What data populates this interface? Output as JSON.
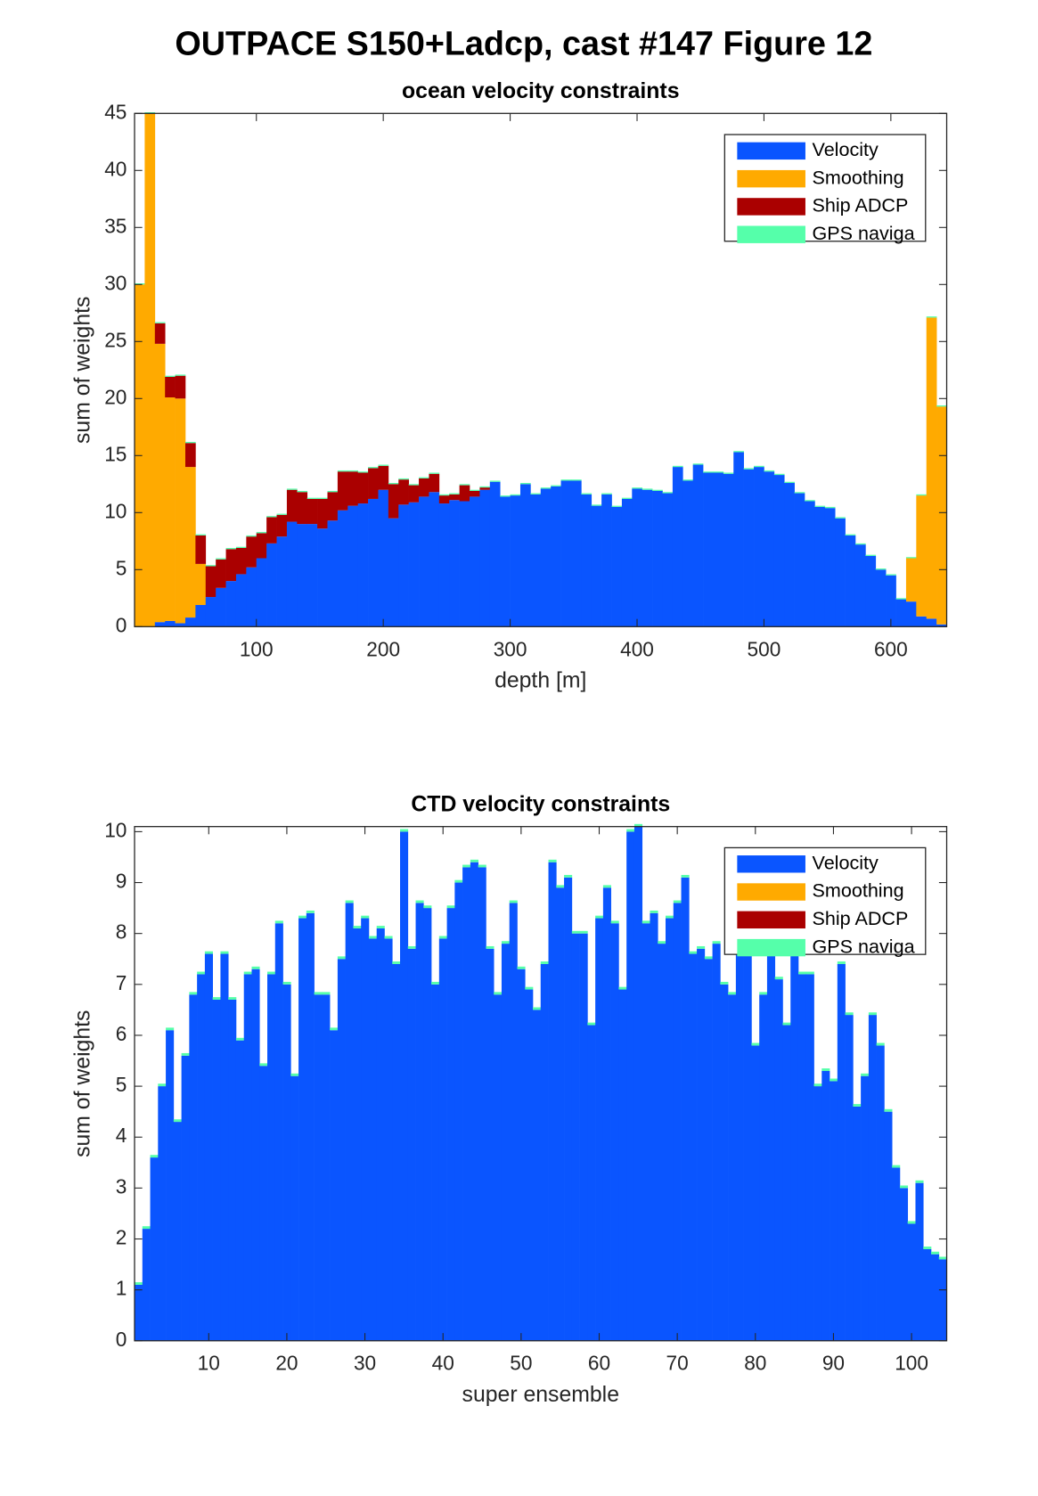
{
  "title": "OUTPACE S150+Ladcp, cast #147  Figure 12",
  "chart_data": [
    {
      "type": "bar",
      "stacked": true,
      "title": "ocean velocity constraints",
      "xlabel": "depth [m]",
      "ylabel": "sum of weights",
      "x": [
        8,
        16,
        24,
        32,
        40,
        48,
        56,
        64,
        72,
        80,
        88,
        96,
        104,
        112,
        120,
        128,
        136,
        144,
        152,
        160,
        168,
        176,
        184,
        192,
        200,
        208,
        216,
        224,
        232,
        240,
        248,
        256,
        264,
        272,
        280,
        288,
        296,
        304,
        312,
        320,
        328,
        336,
        344,
        352,
        360,
        368,
        376,
        384,
        392,
        400,
        408,
        416,
        424,
        432,
        440,
        448,
        456,
        464,
        472,
        480,
        488,
        496,
        504,
        512,
        520,
        528,
        536,
        544,
        552,
        560,
        568,
        576,
        584,
        592,
        600,
        608,
        616,
        624,
        632,
        640
      ],
      "series": [
        {
          "name": "Velocity",
          "color": "#0a55ff",
          "values": [
            0,
            0,
            0.4,
            0.5,
            0.3,
            0.8,
            1.9,
            2.6,
            3.4,
            4.0,
            4.6,
            5.2,
            6.0,
            7.3,
            7.9,
            9.2,
            9.0,
            9.0,
            8.6,
            9.3,
            10.2,
            10.6,
            10.8,
            11.2,
            12.0,
            9.5,
            10.7,
            10.9,
            11.4,
            11.8,
            10.8,
            11.1,
            11.0,
            11.4,
            12.0,
            12.7,
            11.4,
            11.5,
            12.5,
            11.6,
            12.1,
            12.3,
            12.8,
            12.8,
            11.6,
            10.6,
            11.6,
            10.5,
            11.2,
            12.1,
            12.0,
            11.9,
            11.7,
            14.0,
            12.8,
            14.2,
            13.5,
            13.5,
            13.4,
            15.3,
            13.8,
            14.0,
            13.6,
            13.3,
            12.6,
            11.7,
            11.0,
            10.5,
            10.4,
            9.5,
            8.0,
            7.2,
            6.2,
            5.0,
            4.5,
            2.4,
            2.2,
            0.9,
            0.7,
            0.2
          ]
        },
        {
          "name": "Smoothing",
          "color": "#ffaa00",
          "values": [
            30,
            45,
            24.4,
            19.6,
            19.7,
            13.2,
            3.6,
            0,
            0,
            0,
            0,
            0,
            0,
            0,
            0,
            0,
            0,
            0,
            0,
            0,
            0,
            0,
            0,
            0,
            0,
            0,
            0,
            0,
            0,
            0,
            0,
            0,
            0,
            0,
            0,
            0,
            0,
            0,
            0,
            0,
            0,
            0,
            0,
            0,
            0,
            0,
            0,
            0,
            0,
            0,
            0,
            0,
            0,
            0,
            0,
            0,
            0,
            0,
            0,
            0,
            0,
            0,
            0,
            0,
            0,
            0,
            0,
            0,
            0,
            0,
            0,
            0,
            0,
            0,
            0,
            0,
            3.8,
            10.6,
            26.4,
            19.1
          ]
        },
        {
          "name": "Ship ADCP",
          "color": "#aa0000",
          "values": [
            0,
            0,
            1.8,
            1.8,
            2.0,
            2.1,
            2.5,
            2.7,
            2.5,
            2.8,
            2.3,
            2.7,
            2.2,
            2.3,
            1.9,
            2.8,
            2.8,
            2.2,
            2.6,
            2.5,
            3.4,
            3.0,
            2.7,
            2.7,
            2.1,
            3.0,
            2.2,
            1.5,
            1.6,
            1.6,
            0.7,
            0.5,
            1.4,
            0.5,
            0.2,
            0,
            0,
            0,
            0,
            0,
            0,
            0,
            0,
            0,
            0,
            0,
            0,
            0,
            0,
            0,
            0,
            0,
            0,
            0,
            0,
            0,
            0,
            0,
            0,
            0,
            0,
            0,
            0,
            0,
            0,
            0,
            0,
            0,
            0,
            0,
            0,
            0,
            0,
            0,
            0,
            0,
            0,
            0,
            0,
            0
          ]
        },
        {
          "name": "GPS naviga",
          "color": "#55ffaa",
          "values": [
            0.1,
            0.1,
            0.1,
            0.1,
            0.1,
            0.1,
            0.1,
            0.1,
            0.1,
            0.1,
            0.1,
            0.1,
            0.1,
            0.1,
            0.1,
            0.1,
            0.1,
            0.1,
            0.1,
            0.1,
            0.1,
            0.1,
            0.1,
            0.1,
            0.1,
            0.1,
            0.1,
            0.1,
            0.1,
            0.1,
            0.1,
            0.1,
            0.1,
            0.1,
            0.1,
            0.1,
            0.1,
            0.1,
            0.1,
            0.1,
            0.1,
            0.1,
            0.1,
            0.1,
            0.1,
            0.1,
            0.1,
            0.1,
            0.1,
            0.1,
            0.1,
            0.1,
            0.1,
            0.1,
            0.1,
            0.1,
            0.1,
            0.1,
            0.1,
            0.1,
            0.1,
            0.1,
            0.1,
            0.1,
            0.1,
            0.1,
            0.1,
            0.1,
            0.1,
            0.1,
            0.1,
            0.1,
            0.1,
            0.1,
            0.1,
            0.1,
            0.1,
            0.1,
            0.1,
            0.1
          ]
        }
      ],
      "xlim": [
        4,
        644
      ],
      "ylim": [
        0,
        45
      ],
      "xticks": [
        100,
        200,
        300,
        400,
        500,
        600
      ],
      "yticks": [
        0,
        5,
        10,
        15,
        20,
        25,
        30,
        35,
        40,
        45
      ],
      "legend": "northeast"
    },
    {
      "type": "bar",
      "stacked": true,
      "title": "CTD velocity constraints",
      "xlabel": "super ensemble",
      "ylabel": "sum of weights",
      "x": [
        1,
        2,
        3,
        4,
        5,
        6,
        7,
        8,
        9,
        10,
        11,
        12,
        13,
        14,
        15,
        16,
        17,
        18,
        19,
        20,
        21,
        22,
        23,
        24,
        25,
        26,
        27,
        28,
        29,
        30,
        31,
        32,
        33,
        34,
        35,
        36,
        37,
        38,
        39,
        40,
        41,
        42,
        43,
        44,
        45,
        46,
        47,
        48,
        49,
        50,
        51,
        52,
        53,
        54,
        55,
        56,
        57,
        58,
        59,
        60,
        61,
        62,
        63,
        64,
        65,
        66,
        67,
        68,
        69,
        70,
        71,
        72,
        73,
        74,
        75,
        76,
        77,
        78,
        79,
        80,
        81,
        82,
        83,
        84,
        85,
        86,
        87,
        88,
        89,
        90,
        91,
        92,
        93,
        94,
        95,
        96,
        97,
        98,
        99,
        100,
        101,
        102,
        103,
        104
      ],
      "series": [
        {
          "name": "Velocity",
          "color": "#0a55ff",
          "values": [
            1.1,
            2.2,
            3.6,
            5.0,
            6.1,
            4.3,
            5.6,
            6.8,
            7.2,
            7.6,
            6.7,
            7.6,
            6.7,
            5.9,
            7.2,
            7.3,
            5.4,
            7.2,
            8.2,
            7.0,
            5.2,
            8.3,
            8.4,
            6.8,
            6.8,
            6.1,
            7.5,
            8.6,
            8.1,
            8.3,
            7.9,
            8.1,
            7.9,
            7.4,
            10.0,
            7.7,
            8.6,
            8.5,
            7.0,
            7.9,
            8.5,
            9.0,
            9.3,
            9.4,
            9.3,
            7.7,
            6.8,
            7.8,
            8.6,
            7.3,
            6.9,
            6.5,
            7.4,
            9.4,
            8.9,
            9.1,
            8.0,
            8.0,
            6.2,
            8.3,
            8.9,
            8.2,
            6.9,
            10.0,
            10.1,
            8.2,
            8.4,
            7.8,
            8.3,
            8.6,
            9.1,
            7.6,
            7.7,
            7.5,
            7.8,
            7.0,
            6.8,
            7.9,
            7.9,
            5.8,
            6.8,
            7.9,
            7.1,
            6.2,
            7.7,
            7.2,
            7.2,
            5.0,
            5.3,
            5.1,
            7.4,
            6.4,
            4.6,
            5.2,
            6.4,
            5.8,
            4.5,
            3.4,
            3.0,
            2.3,
            3.1,
            1.8,
            1.7,
            1.6
          ]
        },
        {
          "name": "Smoothing",
          "color": "#ffaa00",
          "values": [
            0,
            0,
            0,
            0,
            0,
            0,
            0,
            0,
            0,
            0,
            0,
            0,
            0,
            0,
            0,
            0,
            0,
            0,
            0,
            0,
            0,
            0,
            0,
            0,
            0,
            0,
            0,
            0,
            0,
            0,
            0,
            0,
            0,
            0,
            0,
            0,
            0,
            0,
            0,
            0,
            0,
            0,
            0,
            0,
            0,
            0,
            0,
            0,
            0,
            0,
            0,
            0,
            0,
            0,
            0,
            0,
            0,
            0,
            0,
            0,
            0,
            0,
            0,
            0,
            0,
            0,
            0,
            0,
            0,
            0,
            0,
            0,
            0,
            0,
            0,
            0,
            0,
            0,
            0,
            0,
            0,
            0,
            0,
            0,
            0,
            0,
            0,
            0,
            0,
            0,
            0,
            0,
            0,
            0,
            0,
            0,
            0,
            0,
            0,
            0,
            0,
            0,
            0,
            0
          ]
        },
        {
          "name": "Ship ADCP",
          "color": "#aa0000",
          "values": [
            0,
            0,
            0,
            0,
            0,
            0,
            0,
            0,
            0,
            0,
            0,
            0,
            0,
            0,
            0,
            0,
            0,
            0,
            0,
            0,
            0,
            0,
            0,
            0,
            0,
            0,
            0,
            0,
            0,
            0,
            0,
            0,
            0,
            0,
            0,
            0,
            0,
            0,
            0,
            0,
            0,
            0,
            0,
            0,
            0,
            0,
            0,
            0,
            0,
            0,
            0,
            0,
            0,
            0,
            0,
            0,
            0,
            0,
            0,
            0,
            0,
            0,
            0,
            0,
            0,
            0,
            0,
            0,
            0,
            0,
            0,
            0,
            0,
            0,
            0,
            0,
            0,
            0,
            0,
            0,
            0,
            0,
            0,
            0,
            0,
            0,
            0,
            0,
            0,
            0,
            0,
            0,
            0,
            0,
            0,
            0,
            0,
            0,
            0,
            0,
            0,
            0,
            0,
            0
          ]
        },
        {
          "name": "GPS naviga",
          "color": "#55ffaa",
          "values": [
            0.05,
            0.05,
            0.05,
            0.05,
            0.05,
            0.05,
            0.05,
            0.05,
            0.05,
            0.05,
            0.05,
            0.05,
            0.05,
            0.05,
            0.05,
            0.05,
            0.05,
            0.05,
            0.05,
            0.05,
            0.05,
            0.05,
            0.05,
            0.05,
            0.05,
            0.05,
            0.05,
            0.05,
            0.05,
            0.05,
            0.05,
            0.05,
            0.05,
            0.05,
            0.05,
            0.05,
            0.05,
            0.05,
            0.05,
            0.05,
            0.05,
            0.05,
            0.05,
            0.05,
            0.05,
            0.05,
            0.05,
            0.05,
            0.05,
            0.05,
            0.05,
            0.05,
            0.05,
            0.05,
            0.05,
            0.05,
            0.05,
            0.05,
            0.05,
            0.05,
            0.05,
            0.05,
            0.05,
            0.05,
            0.05,
            0.05,
            0.05,
            0.05,
            0.05,
            0.05,
            0.05,
            0.05,
            0.05,
            0.05,
            0.05,
            0.05,
            0.05,
            0.05,
            0.05,
            0.05,
            0.05,
            0.05,
            0.05,
            0.05,
            0.05,
            0.05,
            0.05,
            0.05,
            0.05,
            0.05,
            0.05,
            0.05,
            0.05,
            0.05,
            0.05,
            0.05,
            0.05,
            0.05,
            0.05,
            0.05,
            0.05,
            0.05,
            0.05,
            0.05
          ]
        }
      ],
      "xlim": [
        0.5,
        104.5
      ],
      "ylim": [
        0,
        10.1
      ],
      "xticks": [
        10,
        20,
        30,
        40,
        50,
        60,
        70,
        80,
        90,
        100
      ],
      "yticks": [
        0,
        1,
        2,
        3,
        4,
        5,
        6,
        7,
        8,
        9,
        10
      ],
      "legend": "northeast"
    }
  ]
}
